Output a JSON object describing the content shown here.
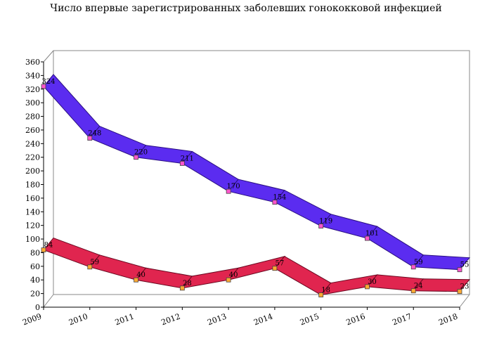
{
  "chart_data": {
    "type": "line",
    "title": "Число впервые зарегистрированных заболевших гонококковой инфекцией",
    "categories": [
      "2009",
      "2010",
      "2011",
      "2012",
      "2013",
      "2014",
      "2015",
      "2016",
      "2017",
      "2018"
    ],
    "y_ticks": [
      "0",
      "20",
      "40",
      "60",
      "80",
      "100",
      "120",
      "140",
      "160",
      "180",
      "200",
      "220",
      "240",
      "260",
      "280",
      "300",
      "320",
      "340",
      "360"
    ],
    "ylim": [
      0,
      360
    ],
    "xlabel": "",
    "ylabel": "",
    "grid": false,
    "series": [
      {
        "values": [
          324,
          248,
          220,
          211,
          170,
          154,
          119,
          101,
          59,
          55
        ],
        "labels": [
          "324",
          "248",
          "220",
          "211",
          "170",
          "154",
          "119",
          "101",
          "59",
          "55"
        ],
        "color": "#5b2cf0",
        "edge_color": "#2a0f80",
        "marker_color": "#ff55cc"
      },
      {
        "values": [
          84,
          59,
          40,
          28,
          40,
          57,
          18,
          30,
          24,
          23
        ],
        "labels": [
          "84",
          "59",
          "40",
          "28",
          "40",
          "57",
          "18",
          "30",
          "24",
          "23"
        ],
        "color": "#e0254f",
        "edge_color": "#6a0820",
        "marker_color": "#ffaa33"
      }
    ]
  }
}
